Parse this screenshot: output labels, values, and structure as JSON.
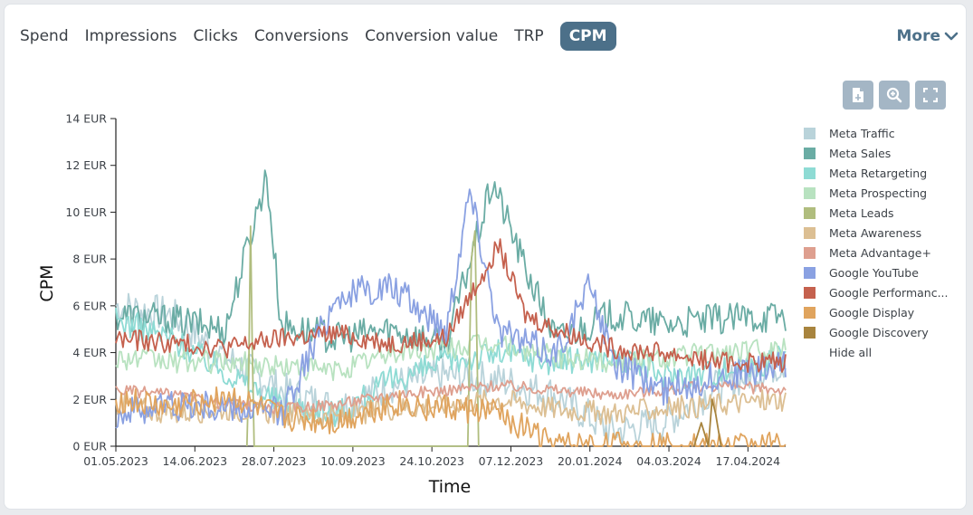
{
  "tabs": [
    {
      "label": "Spend",
      "active": false
    },
    {
      "label": "Impressions",
      "active": false
    },
    {
      "label": "Clicks",
      "active": false
    },
    {
      "label": "Conversions",
      "active": false
    },
    {
      "label": "Conversion value",
      "active": false
    },
    {
      "label": "TRP",
      "active": false
    },
    {
      "label": "CPM",
      "active": true
    }
  ],
  "more_label": "More",
  "accent_color": "#4c7089",
  "toolbar": [
    "export-icon",
    "zoom-in-icon",
    "fullscreen-icon"
  ],
  "legend": {
    "hide_all": "Hide all"
  },
  "chart_data": {
    "type": "line",
    "xlabel": "Time",
    "ylabel": "CPM",
    "ylim": [
      0,
      14
    ],
    "yticks": [
      "0 EUR",
      "2 EUR",
      "4 EUR",
      "6 EUR",
      "8 EUR",
      "10 EUR",
      "12 EUR",
      "14 EUR"
    ],
    "xlim": [
      "2023-05-01",
      "2024-05-08"
    ],
    "xticks": [
      "01.05.2023",
      "14.06.2023",
      "28.07.2023",
      "10.09.2023",
      "24.10.2023",
      "07.12.2023",
      "20.01.2024",
      "04.03.2024",
      "17.04.2024"
    ],
    "grid": false,
    "legend_position": "right",
    "series": [
      {
        "name": "Meta Traffic",
        "color": "#b9d3da",
        "base": 4.2,
        "amp": 1.6,
        "x": [
          "2023-05-01",
          "2023-06-01",
          "2023-07-01",
          "2023-08-01",
          "2023-09-01",
          "2023-10-01",
          "2023-11-01",
          "2023-12-01",
          "2024-01-01",
          "2024-02-01",
          "2024-03-01",
          "2024-04-01",
          "2024-05-08"
        ],
        "y": [
          6.0,
          5.6,
          3.8,
          2.4,
          1.6,
          2.6,
          3.0,
          2.8,
          2.2,
          0.6,
          1.0,
          2.6,
          3.6
        ]
      },
      {
        "name": "Meta Sales",
        "color": "#6aaca4",
        "base": 5.2,
        "amp": 1.4,
        "x": [
          "2023-05-01",
          "2023-06-01",
          "2023-07-01",
          "2023-07-24",
          "2023-08-01",
          "2023-09-01",
          "2023-10-01",
          "2023-11-01",
          "2023-11-27",
          "2023-12-15",
          "2024-01-01",
          "2024-02-01",
          "2024-03-01",
          "2024-04-01",
          "2024-05-08"
        ],
        "y": [
          5.6,
          5.4,
          5.0,
          11.6,
          5.2,
          4.6,
          5.0,
          4.4,
          11.3,
          7.6,
          4.6,
          5.6,
          5.2,
          5.4,
          5.6
        ]
      },
      {
        "name": "Meta Retargeting",
        "color": "#8edbd4",
        "base": 3.0,
        "amp": 1.2,
        "x": [
          "2023-05-01",
          "2023-06-01",
          "2023-07-01",
          "2023-08-01",
          "2023-09-01",
          "2023-10-01",
          "2023-11-01",
          "2023-12-01",
          "2024-01-01",
          "2024-02-01",
          "2024-03-01",
          "2024-04-01",
          "2024-05-08"
        ],
        "y": [
          5.4,
          4.6,
          3.2,
          1.8,
          1.4,
          2.8,
          3.6,
          4.0,
          3.6,
          3.8,
          3.0,
          3.2,
          3.8
        ]
      },
      {
        "name": "Meta Prospecting",
        "color": "#b8e2c0",
        "base": 3.8,
        "amp": 1.0,
        "x": [
          "2023-05-01",
          "2023-06-01",
          "2023-07-01",
          "2023-08-01",
          "2023-09-01",
          "2023-10-01",
          "2023-11-01",
          "2023-12-01",
          "2024-01-01",
          "2024-02-01",
          "2024-03-01",
          "2024-04-01",
          "2024-05-08"
        ],
        "y": [
          3.8,
          3.6,
          3.6,
          3.4,
          3.2,
          4.0,
          4.2,
          4.4,
          3.8,
          3.6,
          3.8,
          4.0,
          4.2
        ]
      },
      {
        "name": "Meta Leads",
        "color": "#b0bd7e",
        "base": 0,
        "amp": 0,
        "x": [
          "2023-07-13",
          "2023-07-14",
          "2023-07-15",
          "2023-07-16",
          "2023-07-17",
          "2023-11-13",
          "2023-11-15",
          "2023-11-17",
          "2023-11-19"
        ],
        "y": [
          0,
          3.0,
          9.4,
          4.0,
          0,
          0,
          8.0,
          9.2,
          0
        ]
      },
      {
        "name": "Meta Awareness",
        "color": "#dcbf93",
        "base": 1.6,
        "amp": 1.0,
        "x": [
          "2023-05-01",
          "2023-06-01",
          "2023-07-01",
          "2023-08-01",
          "2023-09-01",
          "2023-10-01",
          "2023-11-01",
          "2023-12-01",
          "2024-01-01",
          "2024-02-01",
          "2024-03-01",
          "2024-04-01",
          "2024-05-08"
        ],
        "y": [
          1.8,
          1.4,
          1.6,
          1.4,
          1.2,
          1.6,
          1.8,
          2.0,
          1.6,
          1.4,
          1.6,
          1.8,
          2.0
        ]
      },
      {
        "name": "Meta Advantage+",
        "color": "#de9f8f",
        "base": 2.1,
        "amp": 0.5,
        "x": [
          "2023-05-01",
          "2023-06-01",
          "2023-07-01",
          "2023-08-01",
          "2023-09-01",
          "2023-10-01",
          "2023-11-01",
          "2023-12-01",
          "2024-01-01",
          "2024-02-01",
          "2024-03-01",
          "2024-04-01",
          "2024-05-08"
        ],
        "y": [
          2.4,
          2.2,
          1.8,
          1.6,
          1.8,
          2.2,
          2.4,
          2.6,
          2.4,
          2.2,
          2.4,
          2.6,
          2.4
        ]
      },
      {
        "name": "Google YouTube",
        "color": "#8aa1e2",
        "base": 4.4,
        "amp": 1.4,
        "x": [
          "2023-05-01",
          "2023-06-01",
          "2023-07-01",
          "2023-08-01",
          "2023-09-01",
          "2023-10-01",
          "2023-11-01",
          "2023-11-14",
          "2023-12-01",
          "2024-01-01",
          "2024-01-21",
          "2024-02-01",
          "2024-03-01",
          "2024-04-01",
          "2024-05-08"
        ],
        "y": [
          1.4,
          1.8,
          1.6,
          1.4,
          6.4,
          6.8,
          5.0,
          11.0,
          4.8,
          4.0,
          7.0,
          3.6,
          2.4,
          3.0,
          3.4
        ]
      },
      {
        "name": "Google Performance Max",
        "color": "#c5614e",
        "base": 4.2,
        "amp": 0.9,
        "x": [
          "2023-05-01",
          "2023-06-01",
          "2023-07-01",
          "2023-08-01",
          "2023-09-01",
          "2023-10-01",
          "2023-11-01",
          "2023-11-30",
          "2023-12-15",
          "2024-01-01",
          "2024-02-01",
          "2024-03-01",
          "2024-04-01",
          "2024-05-08"
        ],
        "y": [
          4.6,
          4.4,
          4.2,
          4.6,
          4.8,
          4.4,
          4.6,
          8.6,
          5.6,
          5.0,
          4.2,
          4.0,
          3.6,
          3.6
        ]
      },
      {
        "name": "Google Display",
        "color": "#e0a45e",
        "base": 1.4,
        "amp": 1.2,
        "x": [
          "2023-05-01",
          "2023-06-01",
          "2023-07-01",
          "2023-08-01",
          "2023-09-01",
          "2023-10-01",
          "2023-11-01",
          "2023-12-01",
          "2024-01-01",
          "2024-02-01",
          "2024-03-01",
          "2024-04-01",
          "2024-05-08"
        ],
        "y": [
          2.0,
          1.6,
          2.2,
          1.2,
          1.0,
          1.8,
          1.6,
          1.4,
          0,
          0,
          0,
          0,
          0
        ]
      },
      {
        "name": "Google Discovery",
        "color": "#a8843e",
        "base": 0,
        "amp": 0,
        "x": [
          "2024-03-18",
          "2024-03-22",
          "2024-03-26",
          "2024-03-28",
          "2024-03-30",
          "2024-04-02"
        ],
        "y": [
          0,
          1.0,
          0,
          2.0,
          1.4,
          0
        ]
      }
    ]
  }
}
